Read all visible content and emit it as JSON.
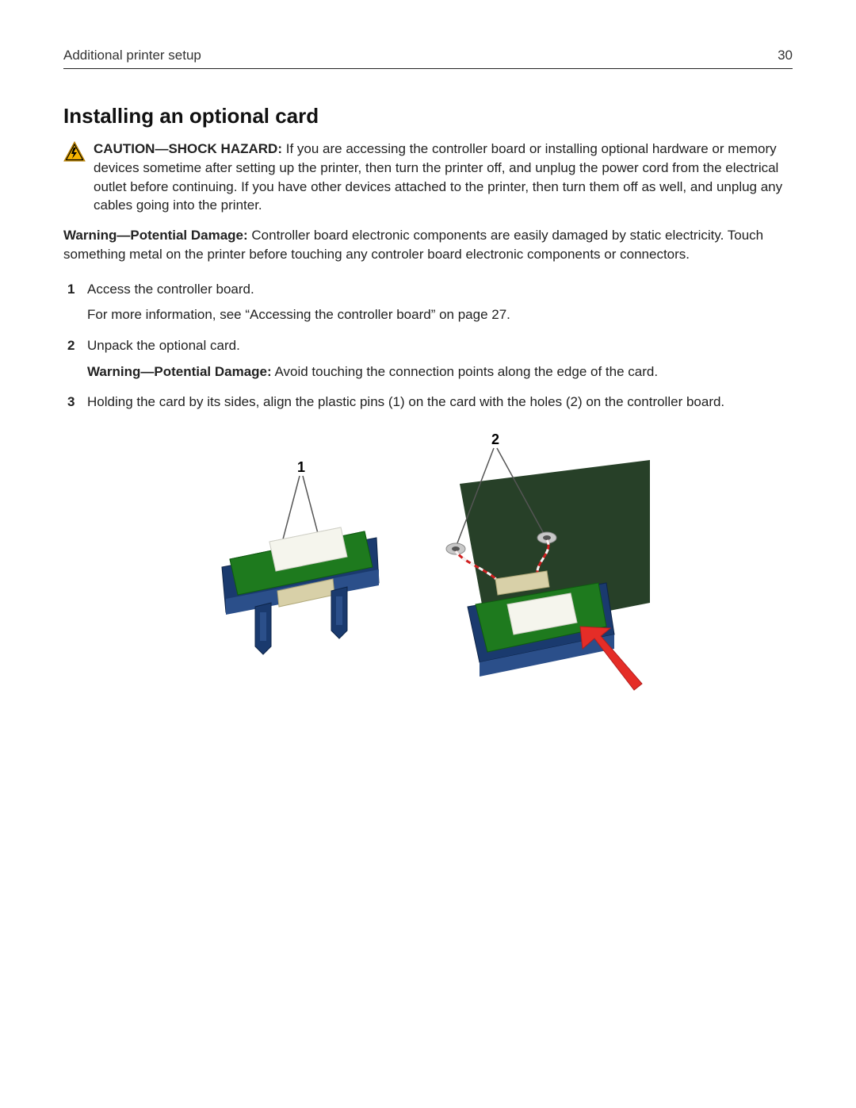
{
  "header": {
    "section": "Additional printer setup",
    "page_number": "30"
  },
  "title": "Installing an optional card",
  "caution": {
    "label": "CAUTION—SHOCK HAZARD:",
    "text": "If you are accessing the controller board or installing optional hardware or memory devices sometime after setting up the printer, then turn the printer off, and unplug the power cord from the electrical outlet before continuing. If you have other devices attached to the printer, then turn them off as well, and unplug any cables going into the printer."
  },
  "warning1": {
    "label": "Warning—Potential Damage:",
    "text": "Controller board electronic components are easily damaged by static electricity. Touch something metal on the printer before touching any controler board electronic components or connectors."
  },
  "steps": {
    "s1": {
      "text": "Access the controller board.",
      "sub": "For more information, see “Accessing the controller board” on page 27."
    },
    "s2": {
      "text": "Unpack the optional card.",
      "warn_label": "Warning—Potential Damage:",
      "warn_text": "Avoid touching the connection points along the edge of the card."
    },
    "s3": {
      "text": "Holding the card by its sides, align the plastic pins (1) on the card with the holes (2) on the controller board."
    }
  },
  "figure": {
    "label1": "1",
    "label2": "2",
    "colors": {
      "board_green": "#1e7a1e",
      "board_green_dark": "#0f5a10",
      "bg_panel": "#274028",
      "frame_blue": "#1a3a6e",
      "frame_blue_light": "#2b4f8a",
      "chip_light": "#f5f5ed",
      "chip_outline": "#cfcfc6",
      "connector_tan": "#d8d0a8",
      "connector_dark": "#b0a878",
      "arrow_red": "#e52d27",
      "arrow_red_dark": "#b01e1e",
      "callout_line": "#555555",
      "pin_silver": "#c8c8c8",
      "wire_red": "#d02020",
      "wire_white": "#f4f4f4"
    }
  }
}
